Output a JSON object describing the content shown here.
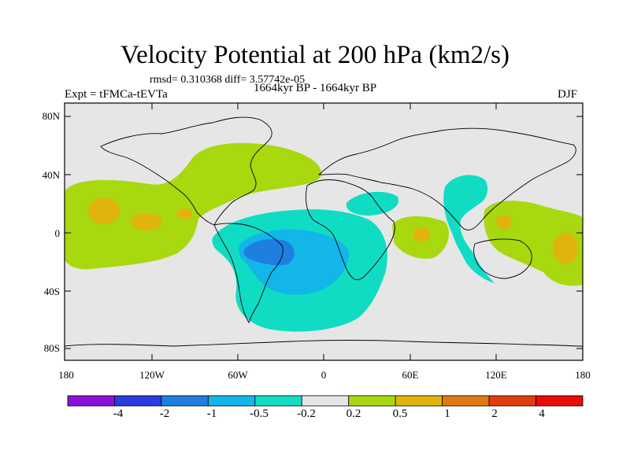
{
  "title": "Velocity Potential at 200 hPa (km2/s)",
  "stats": "rmsd= 0.310368 diff= 3.57742e-05",
  "left_label": "Expt = tFMCa-tEVTa",
  "center_label": "1664kyr BP - 1664kyr BP",
  "right_label": "DJF",
  "lat_labels": [
    "80N",
    "40N",
    "0",
    "40S",
    "80S"
  ],
  "lon_labels": [
    "180",
    "120W",
    "60W",
    "0",
    "60E",
    "120E",
    "180"
  ],
  "colorbar": {
    "labels": [
      "-4",
      "-2",
      "-1",
      "-0.5",
      "-0.2",
      "0.2",
      "0.5",
      "1",
      "2",
      "4"
    ],
    "colors": [
      "#8a12d8",
      "#2a3ddc",
      "#1e7fe0",
      "#12b6e8",
      "#10dcc4",
      "#e6e6e6",
      "#a8d80e",
      "#e0b40c",
      "#e07a10",
      "#e03c10",
      "#e80c0c"
    ]
  },
  "colors": {
    "ocean": "#e6e6e6",
    "coast": "#000000"
  }
}
